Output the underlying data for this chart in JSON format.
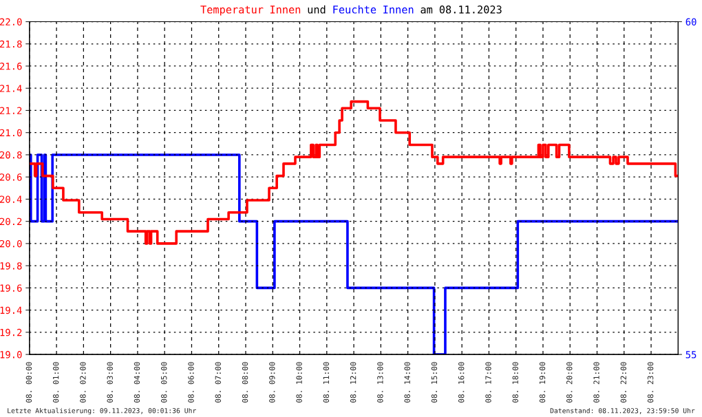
{
  "chart_data": {
    "type": "step",
    "title": "Temperatur Innen und Feuchte Innen am 08.11.2023",
    "annotations": [
      "Letzte Aktualisierung: 09.11.2023, 00:01:36 Uhr",
      "Datenstand: 08.11.2023, 23:59:50 Uhr"
    ],
    "xlim": [
      "2023-11-08T00:00",
      "2023-11-09T00:00"
    ],
    "xticks": [
      {
        "value": "2023-11-08T00:00",
        "label": "08. 00:00"
      },
      {
        "value": "2023-11-08T01:00",
        "label": "08. 01:00"
      },
      {
        "value": "2023-11-08T02:00",
        "label": "08. 02:00"
      },
      {
        "value": "2023-11-08T03:00",
        "label": "08. 03:00"
      },
      {
        "value": "2023-11-08T04:00",
        "label": "08. 04:00"
      },
      {
        "value": "2023-11-08T05:00",
        "label": "08. 05:00"
      },
      {
        "value": "2023-11-08T06:00",
        "label": "08. 06:00"
      },
      {
        "value": "2023-11-08T07:00",
        "label": "08. 07:00"
      },
      {
        "value": "2023-11-08T08:00",
        "label": "08. 08:00"
      },
      {
        "value": "2023-11-08T09:00",
        "label": "08. 09:00"
      },
      {
        "value": "2023-11-08T10:00",
        "label": "08. 10:00"
      },
      {
        "value": "2023-11-08T11:00",
        "label": "08. 11:00"
      },
      {
        "value": "2023-11-08T12:00",
        "label": "08. 12:00"
      },
      {
        "value": "2023-11-08T13:00",
        "label": "08. 13:00"
      },
      {
        "value": "2023-11-08T14:00",
        "label": "08. 14:00"
      },
      {
        "value": "2023-11-08T15:00",
        "label": "08. 15:00"
      },
      {
        "value": "2023-11-08T16:00",
        "label": "08. 16:00"
      },
      {
        "value": "2023-11-08T17:00",
        "label": "08. 17:00"
      },
      {
        "value": "2023-11-08T18:00",
        "label": "08. 18:00"
      },
      {
        "value": "2023-11-08T19:00",
        "label": "08. 19:00"
      },
      {
        "value": "2023-11-08T20:00",
        "label": "08. 20:00"
      },
      {
        "value": "2023-11-08T21:00",
        "label": "08. 21:00"
      },
      {
        "value": "2023-11-08T22:00",
        "label": "08. 22:00"
      },
      {
        "value": "2023-11-08T23:00",
        "label": "08. 23:00"
      }
    ],
    "ylim": [
      19,
      22
    ],
    "yticks": [
      {
        "value": 19,
        "label": "19.0"
      },
      19.2,
      19.4,
      19.6,
      19.8,
      {
        "value": 20,
        "label": "20.0"
      },
      20.2,
      20.4,
      20.6,
      20.8,
      {
        "value": 21,
        "label": "21.0"
      },
      21.2,
      21.4,
      21.6,
      21.8,
      {
        "value": 22,
        "label": "22.0"
      }
    ],
    "y2lim": [
      55,
      60
    ],
    "y2ticks": [
      55,
      60
    ],
    "grid": true,
    "series": [
      {
        "color": "#ff0000",
        "x": [
          "2023-11-08T00:00",
          "2023-11-08T00:12",
          "2023-11-08T00:15",
          "2023-11-08T00:29",
          "2023-11-08T00:52",
          "2023-11-08T01:15",
          "2023-11-08T01:50",
          "2023-11-08T02:41",
          "2023-11-08T03:38",
          "2023-11-08T04:18",
          "2023-11-08T04:21",
          "2023-11-08T04:27",
          "2023-11-08T04:30",
          "2023-11-08T04:44",
          "2023-11-08T05:26",
          "2023-11-08T06:36",
          "2023-11-08T07:22",
          "2023-11-08T08:03",
          "2023-11-08T08:52",
          "2023-11-08T09:09",
          "2023-11-08T09:24",
          "2023-11-08T09:50",
          "2023-11-08T10:25",
          "2023-11-08T10:30",
          "2023-11-08T10:36",
          "2023-11-08T10:39",
          "2023-11-08T10:44",
          "2023-11-08T11:19",
          "2023-11-08T11:28",
          "2023-11-08T11:34",
          "2023-11-08T11:54",
          "2023-11-08T12:31",
          "2023-11-08T12:58",
          "2023-11-08T13:33",
          "2023-11-08T14:04",
          "2023-11-08T14:54",
          "2023-11-08T15:06",
          "2023-11-08T15:18",
          "2023-11-08T17:24",
          "2023-11-08T17:27",
          "2023-11-08T17:48",
          "2023-11-08T17:51",
          "2023-11-08T18:50",
          "2023-11-08T18:54",
          "2023-11-08T19:00",
          "2023-11-08T19:06",
          "2023-11-08T19:12",
          "2023-11-08T19:30",
          "2023-11-08T19:36",
          "2023-11-08T19:58",
          "2023-11-08T21:29",
          "2023-11-08T21:36",
          "2023-11-08T21:42",
          "2023-11-08T21:48",
          "2023-11-08T22:08",
          "2023-11-08T23:54",
          "2023-11-09T00:00"
        ],
        "values": [
          20.72,
          20.61,
          20.72,
          20.61,
          20.5,
          20.39,
          20.28,
          20.22,
          20.11,
          20.0,
          20.11,
          20.0,
          20.11,
          20.0,
          20.11,
          20.22,
          20.28,
          20.39,
          20.5,
          20.61,
          20.72,
          20.78,
          20.89,
          20.78,
          20.89,
          20.78,
          20.89,
          21.0,
          21.11,
          21.22,
          21.28,
          21.22,
          21.11,
          21.0,
          20.89,
          20.78,
          20.72,
          20.78,
          20.72,
          20.78,
          20.72,
          20.78,
          20.89,
          20.78,
          20.89,
          20.78,
          20.89,
          20.78,
          20.89,
          20.78,
          20.72,
          20.78,
          20.72,
          20.78,
          20.72,
          20.61,
          20.61
        ]
      },
      {
        "color": "#0000ff",
        "axis": "y2",
        "x": [
          "2023-11-08T00:00",
          "2023-11-08T00:03",
          "2023-11-08T00:18",
          "2023-11-08T00:27",
          "2023-11-08T00:33",
          "2023-11-08T00:36",
          "2023-11-08T00:51",
          "2023-11-08T07:46",
          "2023-11-08T08:25",
          "2023-11-08T09:04",
          "2023-11-08T11:46",
          "2023-11-08T14:58",
          "2023-11-08T15:23",
          "2023-11-08T18:04",
          "2023-11-09T00:00"
        ],
        "values": [
          58,
          57,
          58,
          57,
          58,
          57,
          58,
          57,
          56,
          57,
          56,
          55,
          56,
          57,
          57
        ]
      }
    ]
  }
}
